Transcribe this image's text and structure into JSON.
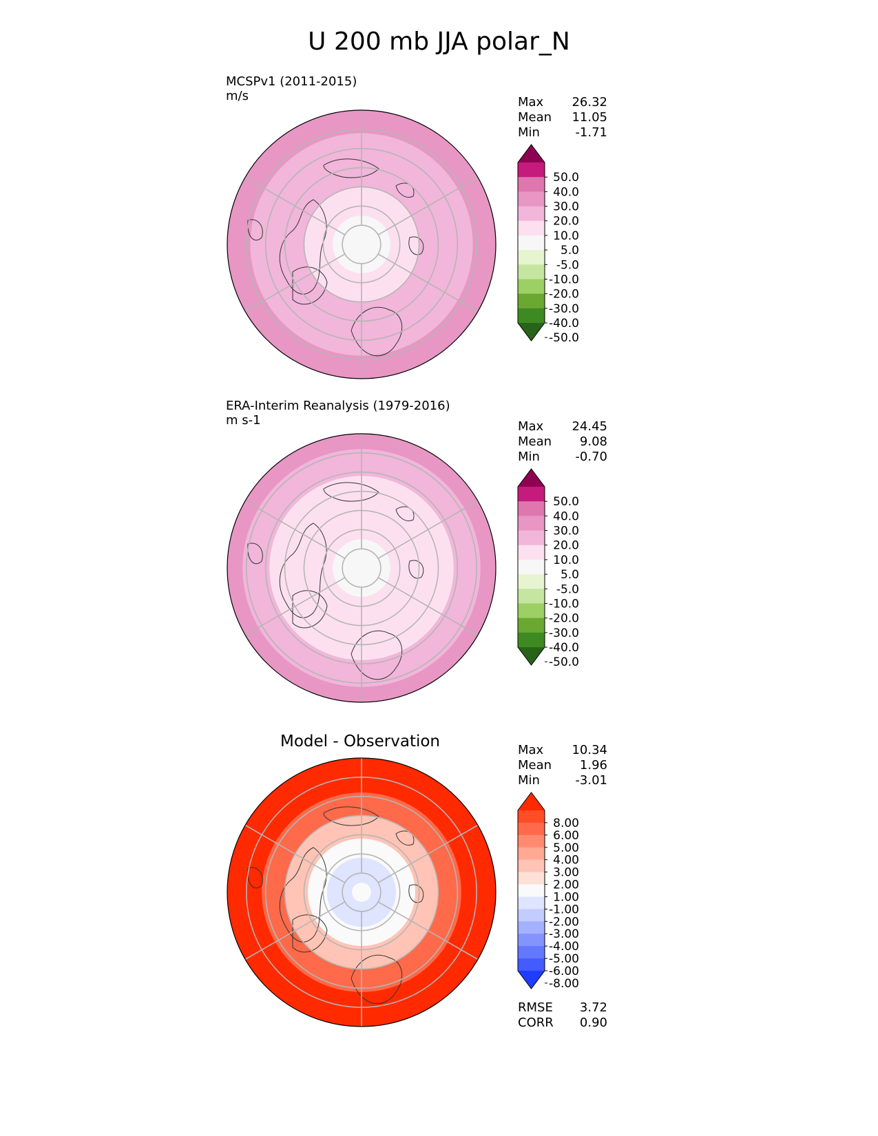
{
  "figure": {
    "title": "U 200 mb JJA polar_N"
  },
  "panels": [
    {
      "title": "MCSPv1 (2011-2015)",
      "units": "m/s",
      "stats": [
        {
          "label": "Max",
          "value": "26.32"
        },
        {
          "label": "Mean",
          "value": "11.05"
        },
        {
          "label": "Min",
          "value": "-1.71"
        }
      ]
    },
    {
      "title": "ERA-Interim Reanalysis (1979-2016)",
      "units": "m s-1",
      "stats": [
        {
          "label": "Max",
          "value": "24.45"
        },
        {
          "label": "Mean",
          "value": "9.08"
        },
        {
          "label": "Min",
          "value": "-0.70"
        }
      ]
    },
    {
      "title": "Model - Observation",
      "units": "",
      "stats": [
        {
          "label": "Max",
          "value": "10.34"
        },
        {
          "label": "Mean",
          "value": "1.96"
        },
        {
          "label": "Min",
          "value": "-3.01"
        }
      ],
      "metrics": [
        {
          "label": "RMSE",
          "value": "3.72"
        },
        {
          "label": "CORR",
          "value": "0.90"
        }
      ]
    }
  ],
  "chart_data": [
    {
      "type": "heatmap",
      "projection": "north-polar-stereographic",
      "title": "MCSPv1 (2011-2015)",
      "units": "m/s",
      "colorbar": {
        "tick_labels": [
          "50.0",
          "40.0",
          "30.0",
          "20.0",
          "10.0",
          "5.0",
          "-5.0",
          "-10.0",
          "-20.0",
          "-30.0",
          "-40.0",
          "-50.0"
        ],
        "colors": [
          "#8e0152",
          "#c51b7d",
          "#de77ae",
          "#e896c4",
          "#f1b6da",
          "#fde0ef",
          "#f7f7f7",
          "#e6f5d0",
          "#c4e6a0",
          "#9ccf64",
          "#6aa832",
          "#3e8a22",
          "#276419"
        ],
        "extend": "both"
      },
      "zones": [
        {
          "from_lat": 90,
          "to_lat": 75,
          "value": 2
        },
        {
          "from_lat": 75,
          "to_lat": 60,
          "value": 8
        },
        {
          "from_lat": 60,
          "to_lat": 45,
          "value": 15
        },
        {
          "from_lat": 45,
          "to_lat": 32,
          "value": 18
        },
        {
          "from_lat": 32,
          "to_lat": 20,
          "value": 22
        }
      ]
    },
    {
      "type": "heatmap",
      "projection": "north-polar-stereographic",
      "title": "ERA-Interim Reanalysis (1979-2016)",
      "units": "m s-1",
      "colorbar": {
        "tick_labels": [
          "50.0",
          "40.0",
          "30.0",
          "20.0",
          "10.0",
          "5.0",
          "-5.0",
          "-10.0",
          "-20.0",
          "-30.0",
          "-40.0",
          "-50.0"
        ],
        "colors": [
          "#8e0152",
          "#c51b7d",
          "#de77ae",
          "#e896c4",
          "#f1b6da",
          "#fde0ef",
          "#f7f7f7",
          "#e6f5d0",
          "#c4e6a0",
          "#9ccf64",
          "#6aa832",
          "#3e8a22",
          "#276419"
        ],
        "extend": "both"
      },
      "zones": [
        {
          "from_lat": 90,
          "to_lat": 75,
          "value": 2
        },
        {
          "from_lat": 75,
          "to_lat": 60,
          "value": 5
        },
        {
          "from_lat": 60,
          "to_lat": 42,
          "value": 9
        },
        {
          "from_lat": 42,
          "to_lat": 28,
          "value": 14
        },
        {
          "from_lat": 28,
          "to_lat": 20,
          "value": 20
        }
      ]
    },
    {
      "type": "heatmap",
      "projection": "north-polar-stereographic",
      "title": "Model - Observation",
      "colorbar": {
        "tick_labels": [
          "8.00",
          "6.00",
          "5.00",
          "4.00",
          "3.00",
          "2.00",
          "1.00",
          "-1.00",
          "-2.00",
          "-3.00",
          "-4.00",
          "-5.00",
          "-6.00",
          "-8.00"
        ],
        "colors": [
          "#ff2a00",
          "#ff4d26",
          "#ff6a4a",
          "#ff8a70",
          "#ffa894",
          "#ffc4b5",
          "#ffe0d6",
          "#fafafa",
          "#dfe4ff",
          "#c2ccff",
          "#a3b1ff",
          "#8394ff",
          "#6478ff",
          "#435bff",
          "#1f3dff"
        ],
        "extend": "both"
      },
      "zones": [
        {
          "from_lat": 90,
          "to_lat": 85,
          "value": 0
        },
        {
          "from_lat": 85,
          "to_lat": 72,
          "value": -1.5
        },
        {
          "from_lat": 72,
          "to_lat": 62,
          "value": 0
        },
        {
          "from_lat": 62,
          "to_lat": 50,
          "value": 2.5
        },
        {
          "from_lat": 50,
          "to_lat": 38,
          "value": 5.5
        },
        {
          "from_lat": 38,
          "to_lat": 20,
          "value": 8.5
        }
      ]
    }
  ]
}
